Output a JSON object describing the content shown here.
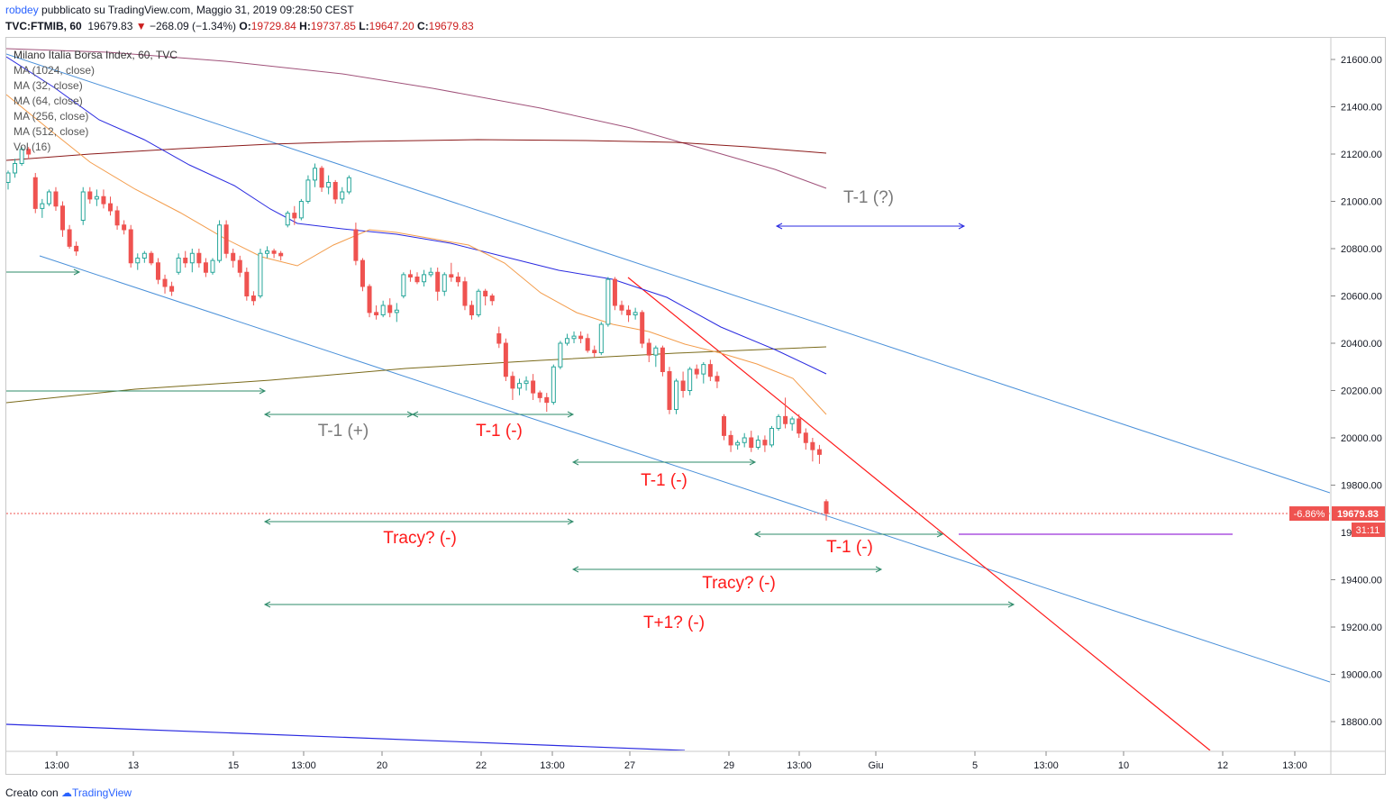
{
  "header": {
    "author": "robdey",
    "published": "pubblicato su TradingView.com, Maggio 31, 2019 09:28:50 CEST",
    "symbol": "TVC:FTMIB, 60",
    "last": "19679.83",
    "change": "−268.09 (−1.34%)",
    "open_label": "O:",
    "open": "19729.84",
    "high_label": "H:",
    "high": "19737.85",
    "low_label": "L:",
    "low": "19647.20",
    "close_label": "C:",
    "close": "19679.83"
  },
  "legend": {
    "title": "Milano Italia Borsa Index, 60, TVC",
    "items": [
      "MA (1024, close)",
      "MA (32, close)",
      "MA (64, close)",
      "MA (256, close)",
      "MA (512, close)",
      "Vol (16)"
    ]
  },
  "footer": {
    "prefix": "Creato con",
    "brand": "TradingView"
  },
  "colors": {
    "up": "#26a69a",
    "down": "#ef5350",
    "candle_up_fill": "#ffffff",
    "candle_down_fill": "#ef5350",
    "ma32": "#f39c4b",
    "ma64": "#2a2ae0",
    "ma256": "#7a6a1a",
    "ma512": "#8b1a1a",
    "ma1024": "#a0527a",
    "channel": "#4a90d9",
    "red_line": "#ff1a1a",
    "annotation_green": "#2e8b6a",
    "annotation_blue": "#2a2ae0",
    "purple": "#9b30d9",
    "price_tag": "#ef5350"
  },
  "chart_data": {
    "type": "candlestick",
    "title": "Milano Italia Borsa Index, 60, TVC",
    "y_axis": {
      "ticks": [
        "21600.00",
        "21400.00",
        "21200.00",
        "21000.00",
        "20800.00",
        "20600.00",
        "20400.00",
        "20200.00",
        "20000.00",
        "19800.00",
        "19400.00",
        "19200.00",
        "19000.00",
        "18800.00"
      ],
      "range": [
        18690,
        21700
      ]
    },
    "x_axis": {
      "ticks": [
        "13:00",
        "13",
        "15",
        "13:00",
        "20",
        "22",
        "13:00",
        "27",
        "29",
        "13:00",
        "Giu",
        "5",
        "13:00",
        "10",
        "12",
        "13:00"
      ]
    },
    "last_price": {
      "change_pct": "-6.86%",
      "price": "19679.83",
      "countdown": "31:11",
      "hidden_tick": "19...",
      "value": 19679.83
    },
    "candles": [
      [
        21080,
        21130,
        21050,
        21120
      ],
      [
        21120,
        21180,
        21100,
        21160
      ],
      [
        21160,
        21230,
        21150,
        21220
      ],
      [
        21220,
        21230,
        21180,
        21200
      ],
      [
        21100,
        21120,
        20950,
        20970
      ],
      [
        20970,
        21010,
        20930,
        20990
      ],
      [
        20990,
        21050,
        20980,
        21040
      ],
      [
        21040,
        21060,
        20960,
        20980
      ],
      [
        20980,
        21000,
        20850,
        20880
      ],
      [
        20880,
        20900,
        20800,
        20810
      ],
      [
        20810,
        20830,
        20770,
        20790
      ],
      [
        20920,
        21060,
        20900,
        21040
      ],
      [
        21040,
        21060,
        20990,
        21010
      ],
      [
        21010,
        21050,
        20980,
        21020
      ],
      [
        21020,
        21050,
        20970,
        20990
      ],
      [
        20990,
        21020,
        20940,
        20960
      ],
      [
        20960,
        20980,
        20880,
        20900
      ],
      [
        20900,
        20920,
        20860,
        20880
      ],
      [
        20880,
        20900,
        20720,
        20740
      ],
      [
        20740,
        20780,
        20710,
        20760
      ],
      [
        20760,
        20790,
        20740,
        20780
      ],
      [
        20780,
        20790,
        20730,
        20740
      ],
      [
        20740,
        20760,
        20650,
        20670
      ],
      [
        20670,
        20690,
        20610,
        20640
      ],
      [
        20640,
        20660,
        20600,
        20620
      ],
      [
        20700,
        20780,
        20690,
        20760
      ],
      [
        20760,
        20790,
        20720,
        20740
      ],
      [
        20740,
        20800,
        20700,
        20780
      ],
      [
        20780,
        20800,
        20720,
        20740
      ],
      [
        20740,
        20760,
        20680,
        20700
      ],
      [
        20700,
        20760,
        20690,
        20750
      ],
      [
        20750,
        20920,
        20740,
        20900
      ],
      [
        20900,
        20920,
        20760,
        20780
      ],
      [
        20780,
        20800,
        20720,
        20750
      ],
      [
        20750,
        20770,
        20680,
        20700
      ],
      [
        20700,
        20720,
        20580,
        20600
      ],
      [
        20600,
        20620,
        20560,
        20580
      ],
      [
        20600,
        20800,
        20590,
        20780
      ],
      [
        20780,
        20810,
        20760,
        20790
      ],
      [
        20790,
        20800,
        20760,
        20780
      ],
      [
        20780,
        20790,
        20750,
        20770
      ],
      [
        20900,
        20960,
        20890,
        20950
      ],
      [
        20950,
        20980,
        20900,
        20930
      ],
      [
        20930,
        21010,
        20920,
        21000
      ],
      [
        21000,
        21110,
        20990,
        21090
      ],
      [
        21090,
        21160,
        21060,
        21140
      ],
      [
        21140,
        21150,
        21040,
        21060
      ],
      [
        21060,
        21110,
        21030,
        21080
      ],
      [
        21080,
        21090,
        20990,
        21010
      ],
      [
        21010,
        21060,
        20990,
        21040
      ],
      [
        21040,
        21110,
        21030,
        21100
      ],
      [
        20880,
        20910,
        20730,
        20750
      ],
      [
        20750,
        20760,
        20620,
        20640
      ],
      [
        20640,
        20650,
        20510,
        20530
      ],
      [
        20530,
        20560,
        20500,
        20520
      ],
      [
        20520,
        20580,
        20510,
        20560
      ],
      [
        20560,
        20590,
        20510,
        20530
      ],
      [
        20530,
        20570,
        20490,
        20540
      ],
      [
        20600,
        20700,
        20590,
        20690
      ],
      [
        20690,
        20710,
        20660,
        20680
      ],
      [
        20680,
        20700,
        20650,
        20660
      ],
      [
        20660,
        20710,
        20640,
        20690
      ],
      [
        20690,
        20720,
        20680,
        20700
      ],
      [
        20700,
        20720,
        20580,
        20620
      ],
      [
        20620,
        20700,
        20600,
        20690
      ],
      [
        20690,
        20740,
        20660,
        20680
      ],
      [
        20680,
        20700,
        20640,
        20660
      ],
      [
        20660,
        20680,
        20540,
        20560
      ],
      [
        20560,
        20580,
        20500,
        20520
      ],
      [
        20520,
        20630,
        20510,
        20620
      ],
      [
        20620,
        20630,
        20560,
        20600
      ],
      [
        20600,
        20610,
        20560,
        20580
      ],
      [
        20440,
        20470,
        20380,
        20400
      ],
      [
        20400,
        20420,
        20240,
        20260
      ],
      [
        20260,
        20280,
        20160,
        20210
      ],
      [
        20210,
        20250,
        20180,
        20230
      ],
      [
        20230,
        20260,
        20200,
        20240
      ],
      [
        20240,
        20270,
        20160,
        20190
      ],
      [
        20190,
        20200,
        20150,
        20170
      ],
      [
        20170,
        20190,
        20110,
        20150
      ],
      [
        20150,
        20310,
        20140,
        20300
      ],
      [
        20300,
        20410,
        20290,
        20400
      ],
      [
        20400,
        20440,
        20390,
        20420
      ],
      [
        20420,
        20450,
        20400,
        20430
      ],
      [
        20430,
        20450,
        20400,
        20420
      ],
      [
        20420,
        20440,
        20360,
        20370
      ],
      [
        20370,
        20390,
        20340,
        20360
      ],
      [
        20360,
        20490,
        20350,
        20480
      ],
      [
        20480,
        20680,
        20470,
        20670
      ],
      [
        20670,
        20680,
        20540,
        20560
      ],
      [
        20560,
        20580,
        20520,
        20540
      ],
      [
        20540,
        20560,
        20490,
        20520
      ],
      [
        20520,
        20550,
        20500,
        20530
      ],
      [
        20530,
        20540,
        20380,
        20400
      ],
      [
        20400,
        20420,
        20320,
        20350
      ],
      [
        20350,
        20390,
        20300,
        20380
      ],
      [
        20380,
        20390,
        20260,
        20280
      ],
      [
        20280,
        20300,
        20100,
        20120
      ],
      [
        20120,
        20250,
        20100,
        20240
      ],
      [
        20240,
        20280,
        20170,
        20200
      ],
      [
        20200,
        20300,
        20180,
        20290
      ],
      [
        20290,
        20310,
        20250,
        20270
      ],
      [
        20270,
        20320,
        20230,
        20310
      ],
      [
        20310,
        20330,
        20240,
        20260
      ],
      [
        20260,
        20280,
        20210,
        20240
      ],
      [
        20090,
        20100,
        19990,
        20010
      ],
      [
        20010,
        20030,
        19940,
        19970
      ],
      [
        19970,
        19990,
        19950,
        19980
      ],
      [
        19980,
        20020,
        19960,
        20000
      ],
      [
        20000,
        20030,
        19940,
        19960
      ],
      [
        19960,
        20010,
        19950,
        19990
      ],
      [
        19990,
        20010,
        19940,
        19970
      ],
      [
        19970,
        20050,
        19960,
        20040
      ],
      [
        20040,
        20100,
        20030,
        20090
      ],
      [
        20090,
        20170,
        20040,
        20060
      ],
      [
        20060,
        20090,
        20030,
        20080
      ],
      [
        20080,
        20100,
        20000,
        20020
      ],
      [
        20020,
        20040,
        19950,
        19980
      ],
      [
        19980,
        20000,
        19900,
        19950
      ],
      [
        19950,
        19970,
        19890,
        19930
      ],
      [
        19730,
        19740,
        19650,
        19680
      ]
    ],
    "annotations": [
      "T-1 (?)",
      "T-1 (+)",
      "T-1 (-)",
      "T-1 (-)",
      "Tracy? (-)",
      "T-1 (-)",
      "Tracy? (-)",
      "T+1? (-)"
    ]
  }
}
